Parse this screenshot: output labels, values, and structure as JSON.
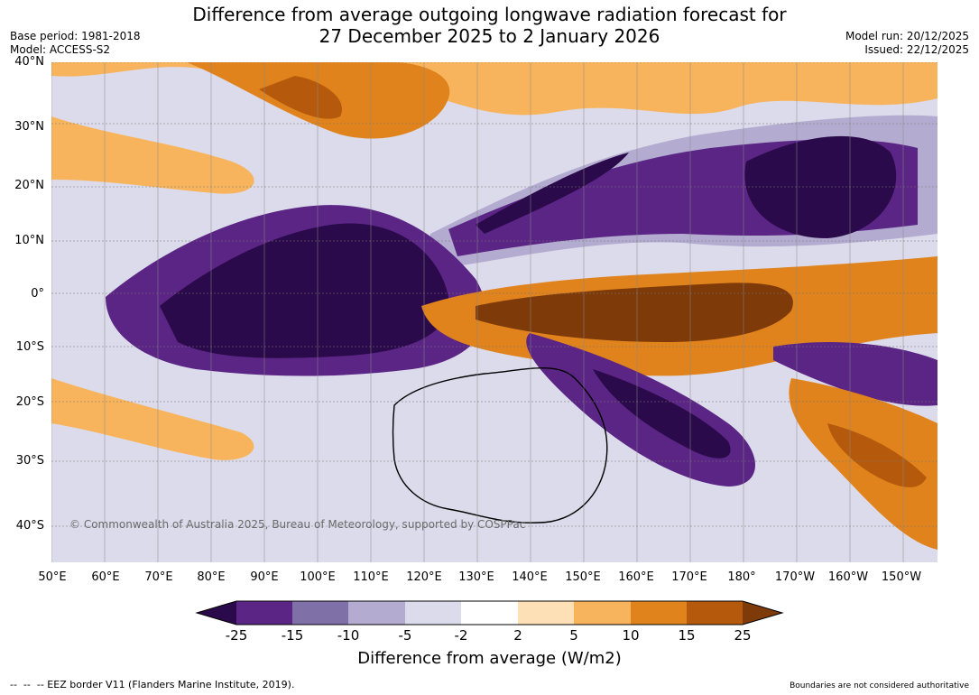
{
  "title": {
    "line1": "Difference from average outgoing longwave radiation forecast for",
    "line2": "27 December 2025 to 2 January 2026"
  },
  "meta": {
    "base_period": "Base period: 1981-2018",
    "model": "Model: ACCESS-S2",
    "model_run": "Model run: 20/12/2025",
    "issued": "Issued: 22/12/2025"
  },
  "map": {
    "lat_labels": [
      "40°N",
      "30°N",
      "20°N",
      "10°N",
      "0°",
      "10°S",
      "20°S",
      "30°S",
      "40°S"
    ],
    "lon_labels": [
      "50°E",
      "60°E",
      "70°E",
      "80°E",
      "90°E",
      "100°E",
      "110°E",
      "120°E",
      "130°E",
      "140°E",
      "150°E",
      "160°E",
      "170°E",
      "180°",
      "170°W",
      "160°W",
      "150°W"
    ],
    "copyright": "© Commonwealth of Australia 2025, Bureau of Meteorology, supported by COSPPac"
  },
  "colorbar": {
    "title": "Difference from average (W/m2)",
    "ticks": [
      "-25",
      "-15",
      "-10",
      "-5",
      "-2",
      "2",
      "5",
      "10",
      "15",
      "25"
    ],
    "colors": [
      "#2a0a4a",
      "#5b2585",
      "#8070a8",
      "#b3acd0",
      "#dcdbeb",
      "#ffffff",
      "#fde0b5",
      "#f8b45c",
      "#e0831c",
      "#b55a0c",
      "#7f3a0a"
    ]
  },
  "footer": {
    "left": "--  --  -- EEZ border V11 (Flanders Marine Institute, 2019).",
    "right": "Boundaries are not considered authoritative"
  }
}
